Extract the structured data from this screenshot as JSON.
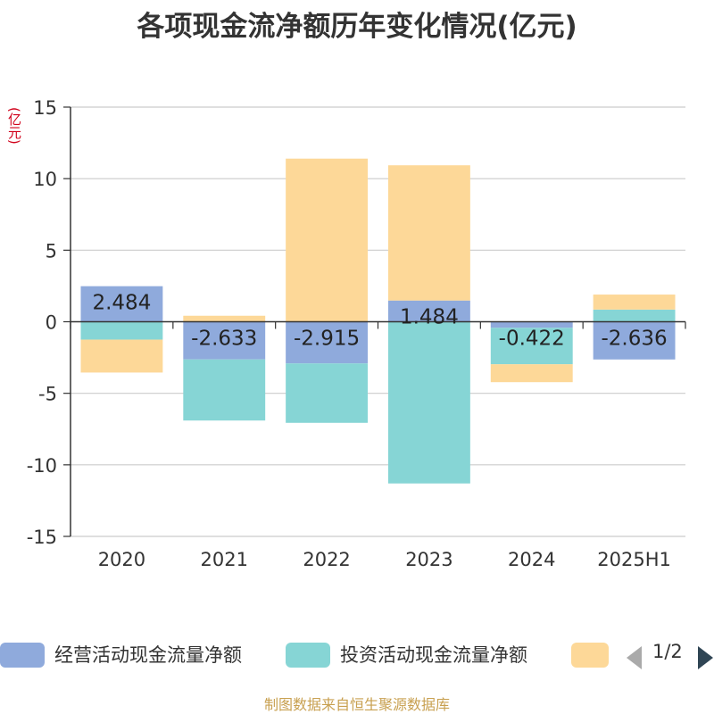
{
  "chart_data": {
    "type": "bar",
    "stacked": true,
    "title": "各项现金流净额历年变化情况(亿元)",
    "unit_label": "(亿元)",
    "categories": [
      "2020",
      "2021",
      "2022",
      "2023",
      "2024",
      "2025H1"
    ],
    "ylim": [
      -15,
      15
    ],
    "yticks": [
      15,
      10,
      5,
      0,
      -5,
      -10,
      -15
    ],
    "grid": true,
    "series": [
      {
        "name": "经营活动现金流量净额",
        "color": "#8faadc",
        "values": [
          2.484,
          -2.633,
          -2.915,
          1.484,
          -0.422,
          -2.636
        ],
        "labels": [
          "2.484",
          "-2.633",
          "-2.915",
          "1.484",
          "-0.422",
          "-2.636"
        ]
      },
      {
        "name": "投资活动现金流量净额",
        "color": "#86d5d5",
        "values": [
          -1.25,
          -4.27,
          -4.15,
          -11.3,
          -2.55,
          0.85
        ]
      },
      {
        "name": "",
        "color": "#fdd898",
        "values": [
          -2.3,
          0.42,
          11.4,
          9.45,
          -1.25,
          1.05
        ]
      }
    ]
  },
  "legend": {
    "items": [
      {
        "label": "经营活动现金流量净额",
        "color": "#8faadc"
      },
      {
        "label": "投资活动现金流量净额",
        "color": "#86d5d5"
      },
      {
        "label": "",
        "color": "#fdd898"
      }
    ],
    "pager_text": "1/2"
  },
  "source": "制图数据来自恒生聚源数据库"
}
